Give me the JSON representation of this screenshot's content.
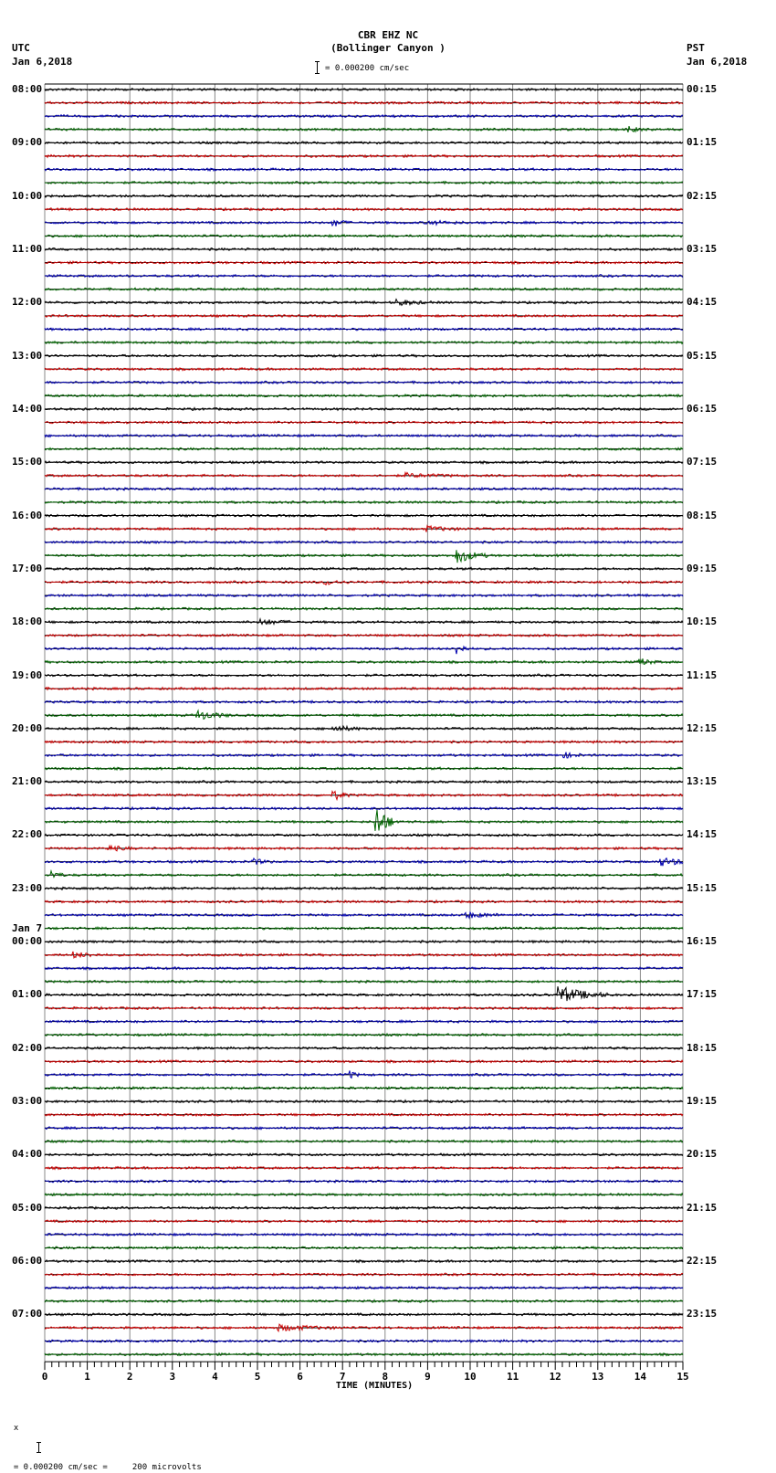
{
  "header": {
    "station": "CBR EHZ NC",
    "location": "(Bollinger Canyon )",
    "scale_text": "= 0.000200 cm/sec",
    "left_tz": "UTC",
    "left_date": "Jan 6,2018",
    "right_tz": "PST",
    "right_date": "Jan 6,2018"
  },
  "footer": {
    "marker": "x",
    "text": "= 0.000200 cm/sec =     200 microvolts"
  },
  "colors": {
    "trace_cycle": [
      "#000000",
      "#cc0000",
      "#0000b0",
      "#006400"
    ],
    "grid": "#888888",
    "baseline": "#000000"
  },
  "chart_data": {
    "type": "line",
    "title": "CBR EHZ NC (Bollinger Canyon ) — helicorder seismogram",
    "xlabel": "TIME (MINUTES)",
    "ylabel": "",
    "x_ticks": [
      "0",
      "1",
      "2",
      "3",
      "4",
      "5",
      "6",
      "7",
      "8",
      "9",
      "10",
      "11",
      "12",
      "13",
      "14",
      "15"
    ],
    "xlim": [
      0,
      15
    ],
    "minor_ticks_per_minute": 6,
    "traces_per_hour": 4,
    "minutes_per_trace": 15,
    "scale": "0.000200 cm/sec = 200 microvolts",
    "left_labels": [
      {
        "row": 0,
        "text": "08:00"
      },
      {
        "row": 4,
        "text": "09:00"
      },
      {
        "row": 8,
        "text": "10:00"
      },
      {
        "row": 12,
        "text": "11:00"
      },
      {
        "row": 16,
        "text": "12:00"
      },
      {
        "row": 20,
        "text": "13:00"
      },
      {
        "row": 24,
        "text": "14:00"
      },
      {
        "row": 28,
        "text": "15:00"
      },
      {
        "row": 32,
        "text": "16:00"
      },
      {
        "row": 36,
        "text": "17:00"
      },
      {
        "row": 40,
        "text": "18:00"
      },
      {
        "row": 44,
        "text": "19:00"
      },
      {
        "row": 48,
        "text": "20:00"
      },
      {
        "row": 52,
        "text": "21:00"
      },
      {
        "row": 56,
        "text": "22:00"
      },
      {
        "row": 60,
        "text": "23:00"
      },
      {
        "row": 64,
        "text": "00:00",
        "date": "Jan 7"
      },
      {
        "row": 68,
        "text": "01:00"
      },
      {
        "row": 72,
        "text": "02:00"
      },
      {
        "row": 76,
        "text": "03:00"
      },
      {
        "row": 80,
        "text": "04:00"
      },
      {
        "row": 84,
        "text": "05:00"
      },
      {
        "row": 88,
        "text": "06:00"
      },
      {
        "row": 92,
        "text": "07:00"
      }
    ],
    "right_labels": [
      {
        "row": 0,
        "text": "00:15"
      },
      {
        "row": 4,
        "text": "01:15"
      },
      {
        "row": 8,
        "text": "02:15"
      },
      {
        "row": 12,
        "text": "03:15"
      },
      {
        "row": 16,
        "text": "04:15"
      },
      {
        "row": 20,
        "text": "05:15"
      },
      {
        "row": 24,
        "text": "06:15"
      },
      {
        "row": 28,
        "text": "07:15"
      },
      {
        "row": 32,
        "text": "08:15"
      },
      {
        "row": 36,
        "text": "09:15"
      },
      {
        "row": 40,
        "text": "10:15"
      },
      {
        "row": 44,
        "text": "11:15"
      },
      {
        "row": 48,
        "text": "12:15"
      },
      {
        "row": 52,
        "text": "13:15"
      },
      {
        "row": 56,
        "text": "14:15"
      },
      {
        "row": 60,
        "text": "15:15"
      },
      {
        "row": 64,
        "text": "16:15"
      },
      {
        "row": 68,
        "text": "17:15"
      },
      {
        "row": 72,
        "text": "18:15"
      },
      {
        "row": 76,
        "text": "19:15"
      },
      {
        "row": 80,
        "text": "20:15"
      },
      {
        "row": 84,
        "text": "21:15"
      },
      {
        "row": 88,
        "text": "22:15"
      },
      {
        "row": 92,
        "text": "23:15"
      }
    ],
    "row_count": 96,
    "events": [
      {
        "row": 3,
        "minute": 13.7,
        "amp": 3,
        "dur": 0.5
      },
      {
        "row": 10,
        "minute": 6.8,
        "amp": 4,
        "dur": 0.4
      },
      {
        "row": 10,
        "minute": 9.0,
        "amp": 2,
        "dur": 1.0
      },
      {
        "row": 16,
        "minute": 8.3,
        "amp": 3,
        "dur": 0.8
      },
      {
        "row": 29,
        "minute": 8.5,
        "amp": 2,
        "dur": 1.2
      },
      {
        "row": 33,
        "minute": 9.0,
        "amp": 2.5,
        "dur": 1.0
      },
      {
        "row": 35,
        "minute": 9.7,
        "amp": 8,
        "dur": 0.7
      },
      {
        "row": 37,
        "minute": 6.6,
        "amp": 2.5,
        "dur": 0.6
      },
      {
        "row": 40,
        "minute": 5.1,
        "amp": 3,
        "dur": 0.8
      },
      {
        "row": 42,
        "minute": 9.7,
        "amp": 6,
        "dur": 0.3
      },
      {
        "row": 43,
        "minute": 14.0,
        "amp": 4,
        "dur": 0.4
      },
      {
        "row": 47,
        "minute": 3.6,
        "amp": 5,
        "dur": 0.8
      },
      {
        "row": 48,
        "minute": 6.8,
        "amp": 3,
        "dur": 0.8
      },
      {
        "row": 50,
        "minute": 12.2,
        "amp": 3,
        "dur": 0.5
      },
      {
        "row": 53,
        "minute": 6.8,
        "amp": 5,
        "dur": 0.4
      },
      {
        "row": 55,
        "minute": 7.8,
        "amp": 18,
        "dur": 0.5
      },
      {
        "row": 57,
        "minute": 1.5,
        "amp": 3,
        "dur": 0.6
      },
      {
        "row": 58,
        "minute": 4.9,
        "amp": 3,
        "dur": 0.5
      },
      {
        "row": 58,
        "minute": 14.5,
        "amp": 4,
        "dur": 1.0
      },
      {
        "row": 59,
        "minute": 0.2,
        "amp": 4,
        "dur": 0.3
      },
      {
        "row": 62,
        "minute": 9.9,
        "amp": 3,
        "dur": 1.0
      },
      {
        "row": 65,
        "minute": 0.7,
        "amp": 3,
        "dur": 0.7
      },
      {
        "row": 68,
        "minute": 12.1,
        "amp": 9,
        "dur": 1.2
      },
      {
        "row": 74,
        "minute": 7.2,
        "amp": 4,
        "dur": 0.2
      },
      {
        "row": 93,
        "minute": 5.5,
        "amp": 3,
        "dur": 1.5
      }
    ]
  }
}
